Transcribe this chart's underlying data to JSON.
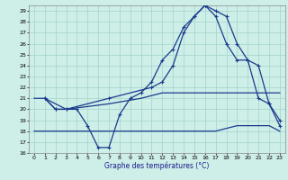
{
  "xlabel": "Graphe des températures (°C)",
  "bg_color": "#ceeee8",
  "grid_color": "#a8d8d0",
  "line_color": "#1a3a8c",
  "ylim": [
    16,
    29.5
  ],
  "xlim": [
    -0.5,
    23.5
  ],
  "yticks": [
    16,
    17,
    18,
    19,
    20,
    21,
    22,
    23,
    24,
    25,
    26,
    27,
    28,
    29
  ],
  "xticks": [
    0,
    1,
    2,
    3,
    4,
    5,
    6,
    7,
    8,
    9,
    10,
    11,
    12,
    13,
    14,
    15,
    16,
    17,
    18,
    19,
    20,
    21,
    22,
    23
  ],
  "line1_x": [
    1,
    2,
    3,
    4,
    5,
    6,
    7,
    8,
    9,
    10,
    11,
    12,
    13,
    14,
    15,
    16,
    17,
    18,
    19,
    20,
    21,
    22,
    23
  ],
  "line1_y": [
    21.0,
    20.0,
    20.0,
    20.0,
    18.5,
    16.5,
    16.5,
    19.5,
    21.0,
    21.5,
    22.5,
    24.5,
    25.5,
    27.5,
    28.5,
    29.5,
    29.0,
    28.5,
    26.0,
    24.5,
    21.0,
    20.5,
    19.0
  ],
  "line2_x": [
    1,
    2,
    3,
    7,
    11,
    12,
    13,
    14,
    15,
    16,
    17,
    18,
    19,
    20,
    21,
    22,
    23
  ],
  "line2_y": [
    21.0,
    20.0,
    20.0,
    21.0,
    22.0,
    22.5,
    24.0,
    27.0,
    28.5,
    29.5,
    28.5,
    26.0,
    24.5,
    24.5,
    24.0,
    20.5,
    18.5
  ],
  "line3_x": [
    0,
    1,
    2,
    3,
    7,
    10,
    12,
    15,
    17,
    19,
    20,
    21,
    22,
    23
  ],
  "line3_y": [
    21.0,
    21.0,
    20.5,
    20.0,
    20.5,
    21.0,
    21.5,
    21.5,
    21.5,
    21.5,
    21.5,
    21.5,
    21.5,
    21.5
  ],
  "line4_x": [
    0,
    3,
    5,
    7,
    10,
    13,
    15,
    17,
    19,
    20,
    21,
    22,
    23
  ],
  "line4_y": [
    18.0,
    18.0,
    18.0,
    18.0,
    18.0,
    18.0,
    18.0,
    18.0,
    18.5,
    18.5,
    18.5,
    18.5,
    18.0
  ]
}
